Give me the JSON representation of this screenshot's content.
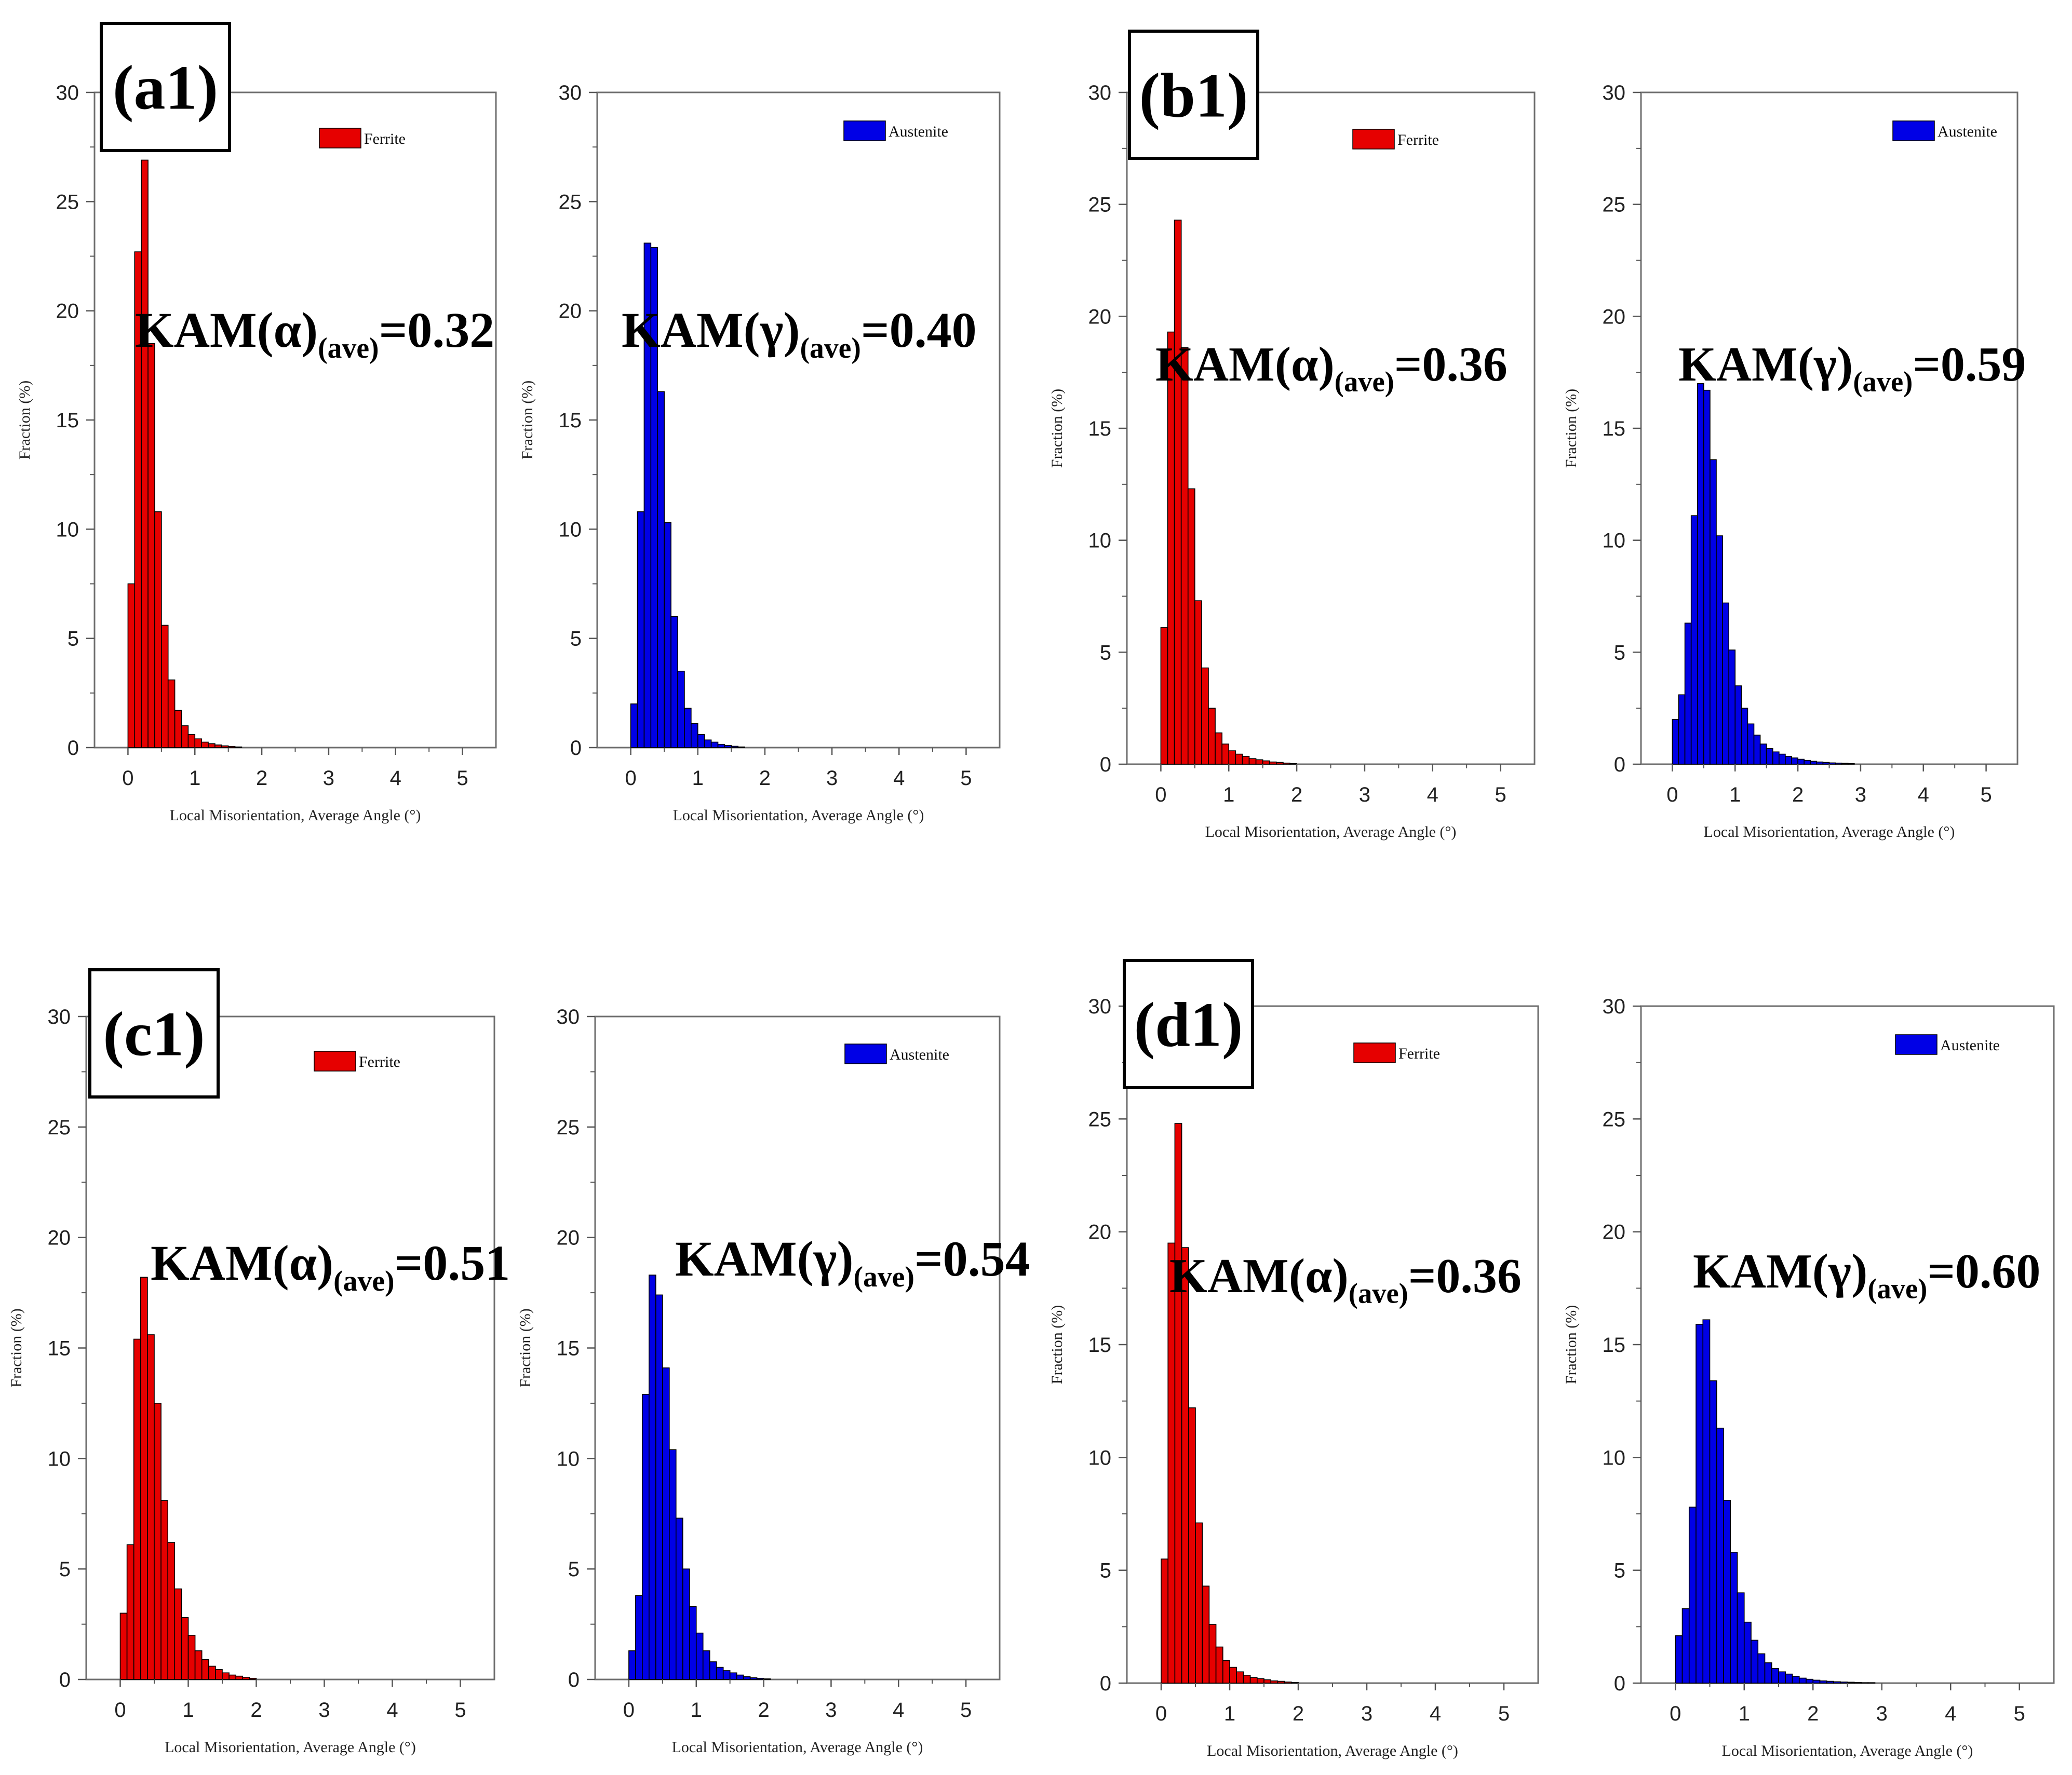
{
  "chart_data": [
    {
      "id": "a-ferrite",
      "type": "bar",
      "panel_label": "(a1)",
      "legend": "Ferrite",
      "color": "#e60000",
      "kam_name": "KAM(α)",
      "kam_sub": "(ave)",
      "kam_value": "=0.32",
      "xlabel": "Local Misorientation, Average Angle (°)",
      "ylabel": "Fraction (%)",
      "xlim": [
        -0.5,
        5.5
      ],
      "ylim": [
        0,
        30
      ],
      "xticks": [
        0,
        1,
        2,
        3,
        4,
        5
      ],
      "yticks": [
        0,
        5,
        10,
        15,
        20,
        25,
        30
      ],
      "bin_width": 0.1,
      "x": [
        0.05,
        0.15,
        0.25,
        0.35,
        0.45,
        0.55,
        0.65,
        0.75,
        0.85,
        0.95,
        1.05,
        1.15,
        1.25,
        1.35,
        1.45,
        1.55,
        1.65
      ],
      "values": [
        7.5,
        22.7,
        26.9,
        18.5,
        10.8,
        5.6,
        3.1,
        1.7,
        1.0,
        0.6,
        0.4,
        0.25,
        0.18,
        0.12,
        0.08,
        0.05,
        0.03
      ]
    },
    {
      "id": "a-austenite",
      "type": "bar",
      "legend": "Austenite",
      "color": "#0000e6",
      "kam_name": "KAM(γ)",
      "kam_sub": "(ave)",
      "kam_value": "=0.40",
      "xlabel": "Local Misorientation, Average Angle (°)",
      "ylabel": "Fraction (%)",
      "xlim": [
        -0.5,
        5.5
      ],
      "ylim": [
        0,
        30
      ],
      "xticks": [
        0,
        1,
        2,
        3,
        4,
        5
      ],
      "yticks": [
        0,
        5,
        10,
        15,
        20,
        25,
        30
      ],
      "bin_width": 0.1,
      "x": [
        0.05,
        0.15,
        0.25,
        0.35,
        0.45,
        0.55,
        0.65,
        0.75,
        0.85,
        0.95,
        1.05,
        1.15,
        1.25,
        1.35,
        1.45,
        1.55,
        1.65
      ],
      "values": [
        2.0,
        10.8,
        23.1,
        22.9,
        16.3,
        10.3,
        6.0,
        3.5,
        1.8,
        1.1,
        0.6,
        0.35,
        0.25,
        0.15,
        0.1,
        0.06,
        0.03
      ]
    },
    {
      "id": "b-ferrite",
      "type": "bar",
      "panel_label": "(b1)",
      "legend": "Ferrite",
      "color": "#e60000",
      "kam_name": "KAM(α)",
      "kam_sub": "(ave)",
      "kam_value": "=0.36",
      "xlabel": "Local Misorientation, Average Angle (°)",
      "ylabel": "Fraction (%)",
      "xlim": [
        -0.5,
        5.5
      ],
      "ylim": [
        0,
        30
      ],
      "xticks": [
        0,
        1,
        2,
        3,
        4,
        5
      ],
      "yticks": [
        0,
        5,
        10,
        15,
        20,
        25,
        30
      ],
      "bin_width": 0.1,
      "x": [
        0.05,
        0.15,
        0.25,
        0.35,
        0.45,
        0.55,
        0.65,
        0.75,
        0.85,
        0.95,
        1.05,
        1.15,
        1.25,
        1.35,
        1.45,
        1.55,
        1.65,
        1.75,
        1.85,
        1.95
      ],
      "values": [
        6.1,
        19.3,
        24.3,
        18.6,
        12.3,
        7.3,
        4.3,
        2.5,
        1.4,
        0.9,
        0.6,
        0.45,
        0.35,
        0.25,
        0.2,
        0.15,
        0.1,
        0.08,
        0.05,
        0.03
      ]
    },
    {
      "id": "b-austenite",
      "type": "bar",
      "legend": "Austenite",
      "color": "#0000e6",
      "kam_name": "KAM(γ)",
      "kam_sub": "(ave)",
      "kam_value": "=0.59",
      "xlabel": "Local Misorientation, Average Angle (°)",
      "ylabel": "Fraction (%)",
      "xlim": [
        -0.5,
        5.5
      ],
      "ylim": [
        0,
        30
      ],
      "xticks": [
        0,
        1,
        2,
        3,
        4,
        5
      ],
      "yticks": [
        0,
        5,
        10,
        15,
        20,
        25,
        30
      ],
      "bin_width": 0.1,
      "x": [
        0.05,
        0.15,
        0.25,
        0.35,
        0.45,
        0.55,
        0.65,
        0.75,
        0.85,
        0.95,
        1.05,
        1.15,
        1.25,
        1.35,
        1.45,
        1.55,
        1.65,
        1.75,
        1.85,
        1.95,
        2.05,
        2.15,
        2.25,
        2.35,
        2.45,
        2.55,
        2.65,
        2.75,
        2.85
      ],
      "values": [
        2.0,
        3.1,
        6.3,
        11.1,
        17.0,
        16.7,
        13.6,
        10.2,
        7.2,
        5.1,
        3.5,
        2.5,
        1.8,
        1.3,
        0.9,
        0.7,
        0.55,
        0.45,
        0.35,
        0.28,
        0.22,
        0.17,
        0.13,
        0.1,
        0.08,
        0.06,
        0.05,
        0.04,
        0.03
      ]
    },
    {
      "id": "c-ferrite",
      "type": "bar",
      "panel_label": "(c1)",
      "legend": "Ferrite",
      "color": "#e60000",
      "kam_name": "KAM(α)",
      "kam_sub": "(ave)",
      "kam_value": "=0.51",
      "xlabel": "Local Misorientation, Average Angle (°)",
      "ylabel": "Fraction (%)",
      "xlim": [
        -0.5,
        5.5
      ],
      "ylim": [
        0,
        30
      ],
      "xticks": [
        0,
        1,
        2,
        3,
        4,
        5
      ],
      "yticks": [
        0,
        5,
        10,
        15,
        20,
        25,
        30
      ],
      "bin_width": 0.1,
      "x": [
        0.05,
        0.15,
        0.25,
        0.35,
        0.45,
        0.55,
        0.65,
        0.75,
        0.85,
        0.95,
        1.05,
        1.15,
        1.25,
        1.35,
        1.45,
        1.55,
        1.65,
        1.75,
        1.85,
        1.95
      ],
      "values": [
        3.0,
        6.1,
        15.4,
        18.2,
        15.6,
        12.5,
        8.1,
        6.2,
        4.1,
        2.8,
        2.0,
        1.3,
        0.9,
        0.6,
        0.45,
        0.3,
        0.2,
        0.15,
        0.1,
        0.05
      ]
    },
    {
      "id": "c-austenite",
      "type": "bar",
      "legend": "Austenite",
      "color": "#0000e6",
      "kam_name": "KAM(γ)",
      "kam_sub": "(ave)",
      "kam_value": "=0.54",
      "xlabel": "Local Misorientation, Average Angle (°)",
      "ylabel": "Fraction (%)",
      "xlim": [
        -0.5,
        5.5
      ],
      "ylim": [
        0,
        30
      ],
      "xticks": [
        0,
        1,
        2,
        3,
        4,
        5
      ],
      "yticks": [
        0,
        5,
        10,
        15,
        20,
        25,
        30
      ],
      "bin_width": 0.1,
      "x": [
        0.05,
        0.15,
        0.25,
        0.35,
        0.45,
        0.55,
        0.65,
        0.75,
        0.85,
        0.95,
        1.05,
        1.15,
        1.25,
        1.35,
        1.45,
        1.55,
        1.65,
        1.75,
        1.85,
        1.95,
        2.05
      ],
      "values": [
        1.3,
        3.8,
        12.9,
        18.3,
        17.4,
        14.1,
        10.4,
        7.3,
        5.0,
        3.3,
        2.1,
        1.3,
        0.8,
        0.55,
        0.4,
        0.3,
        0.2,
        0.13,
        0.08,
        0.05,
        0.03
      ]
    },
    {
      "id": "d-ferrite",
      "type": "bar",
      "panel_label": "(d1)",
      "legend": "Ferrite",
      "color": "#e60000",
      "kam_name": "KAM(α)",
      "kam_sub": "(ave)",
      "kam_value": "=0.36",
      "xlabel": "Local Misorientation, Average Angle (°)",
      "ylabel": "Fraction (%)",
      "xlim": [
        -0.5,
        5.5
      ],
      "ylim": [
        0,
        30
      ],
      "xticks": [
        0,
        1,
        2,
        3,
        4,
        5
      ],
      "yticks": [
        0,
        5,
        10,
        15,
        20,
        25,
        30
      ],
      "bin_width": 0.1,
      "x": [
        0.05,
        0.15,
        0.25,
        0.35,
        0.45,
        0.55,
        0.65,
        0.75,
        0.85,
        0.95,
        1.05,
        1.15,
        1.25,
        1.35,
        1.45,
        1.55,
        1.65,
        1.75,
        1.85,
        1.95
      ],
      "values": [
        5.5,
        19.5,
        24.8,
        19.3,
        12.2,
        7.1,
        4.3,
        2.6,
        1.6,
        1.0,
        0.7,
        0.5,
        0.35,
        0.25,
        0.2,
        0.15,
        0.1,
        0.08,
        0.05,
        0.03
      ]
    },
    {
      "id": "d-austenite",
      "type": "bar",
      "legend": "Austenite",
      "color": "#0000e6",
      "kam_name": "KAM(γ)",
      "kam_sub": "(ave)",
      "kam_value": "=0.60",
      "xlabel": "Local Misorientation, Average Angle (°)",
      "ylabel": "Fraction (%)",
      "xlim": [
        -0.5,
        5.5
      ],
      "ylim": [
        0,
        30
      ],
      "xticks": [
        0,
        1,
        2,
        3,
        4,
        5
      ],
      "yticks": [
        0,
        5,
        10,
        15,
        20,
        25,
        30
      ],
      "bin_width": 0.1,
      "x": [
        0.05,
        0.15,
        0.25,
        0.35,
        0.45,
        0.55,
        0.65,
        0.75,
        0.85,
        0.95,
        1.05,
        1.15,
        1.25,
        1.35,
        1.45,
        1.55,
        1.65,
        1.75,
        1.85,
        1.95,
        2.05,
        2.15,
        2.25,
        2.35,
        2.45,
        2.55,
        2.65,
        2.75,
        2.85
      ],
      "values": [
        2.1,
        3.3,
        7.8,
        15.9,
        16.1,
        13.4,
        11.3,
        8.1,
        5.8,
        4.0,
        2.7,
        1.9,
        1.3,
        0.9,
        0.65,
        0.5,
        0.4,
        0.3,
        0.22,
        0.17,
        0.13,
        0.1,
        0.08,
        0.06,
        0.05,
        0.04,
        0.03,
        0.02,
        0.02
      ]
    }
  ]
}
